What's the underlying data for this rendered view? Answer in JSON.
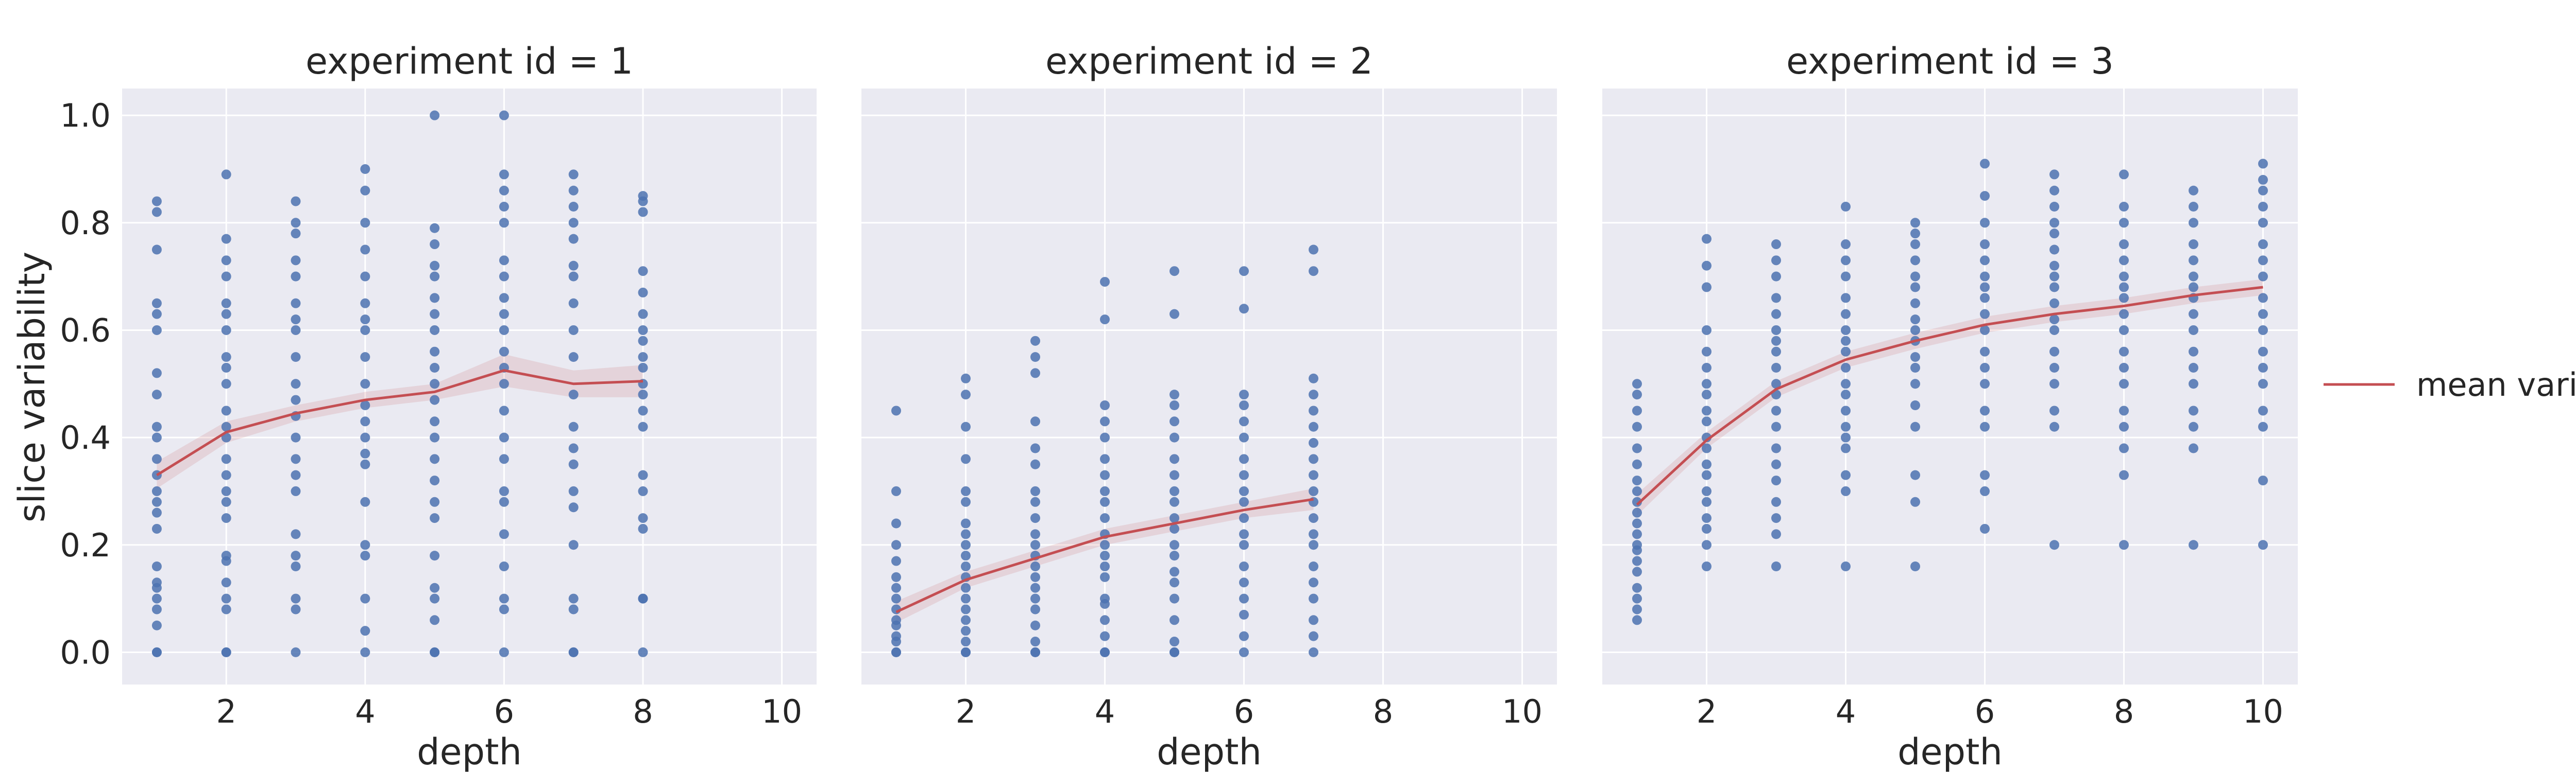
{
  "chart_data": {
    "type": "scatter",
    "ylabel": "slice variability",
    "xlabel": "depth",
    "xlim": [
      0.5,
      10.5
    ],
    "ylim": [
      -0.06,
      1.05
    ],
    "xticks": [
      2,
      4,
      6,
      8,
      10
    ],
    "yticks": [
      0.0,
      0.2,
      0.4,
      0.6,
      0.8,
      1.0
    ],
    "grid": true,
    "legend": {
      "position": "right",
      "label": "mean variability"
    },
    "colors": {
      "points": "#4C72B0",
      "mean": "#C44E52",
      "background": "#EAEAF2"
    },
    "panels": [
      {
        "title": "experiment id = 1",
        "points": [
          {
            "x": 1,
            "y": [
              0.0,
              0.0,
              0.05,
              0.08,
              0.1,
              0.12,
              0.13,
              0.16,
              0.23,
              0.26,
              0.28,
              0.3,
              0.33,
              0.36,
              0.4,
              0.42,
              0.48,
              0.52,
              0.6,
              0.63,
              0.65,
              0.75,
              0.82,
              0.84
            ]
          },
          {
            "x": 2,
            "y": [
              0.0,
              0.0,
              0.08,
              0.1,
              0.13,
              0.17,
              0.18,
              0.25,
              0.28,
              0.3,
              0.33,
              0.36,
              0.4,
              0.42,
              0.45,
              0.5,
              0.53,
              0.55,
              0.6,
              0.63,
              0.65,
              0.7,
              0.73,
              0.77,
              0.89
            ]
          },
          {
            "x": 3,
            "y": [
              0.0,
              0.08,
              0.1,
              0.16,
              0.18,
              0.22,
              0.3,
              0.33,
              0.36,
              0.4,
              0.44,
              0.47,
              0.5,
              0.55,
              0.6,
              0.62,
              0.65,
              0.7,
              0.73,
              0.78,
              0.8,
              0.84
            ]
          },
          {
            "x": 4,
            "y": [
              0.0,
              0.04,
              0.1,
              0.18,
              0.2,
              0.28,
              0.35,
              0.37,
              0.4,
              0.43,
              0.46,
              0.5,
              0.55,
              0.6,
              0.62,
              0.65,
              0.7,
              0.75,
              0.8,
              0.86,
              0.9
            ]
          },
          {
            "x": 5,
            "y": [
              0.0,
              0.0,
              0.06,
              0.1,
              0.12,
              0.18,
              0.25,
              0.28,
              0.32,
              0.36,
              0.4,
              0.43,
              0.47,
              0.5,
              0.53,
              0.56,
              0.6,
              0.63,
              0.66,
              0.7,
              0.72,
              0.76,
              0.79,
              1.0
            ]
          },
          {
            "x": 6,
            "y": [
              0.0,
              0.08,
              0.1,
              0.16,
              0.22,
              0.28,
              0.3,
              0.36,
              0.4,
              0.45,
              0.5,
              0.53,
              0.56,
              0.6,
              0.63,
              0.66,
              0.7,
              0.73,
              0.8,
              0.83,
              0.86,
              0.89,
              1.0
            ]
          },
          {
            "x": 7,
            "y": [
              0.0,
              0.0,
              0.08,
              0.1,
              0.2,
              0.27,
              0.3,
              0.35,
              0.38,
              0.42,
              0.48,
              0.55,
              0.6,
              0.65,
              0.7,
              0.72,
              0.77,
              0.8,
              0.83,
              0.86,
              0.89
            ]
          },
          {
            "x": 8,
            "y": [
              0.0,
              0.1,
              0.1,
              0.23,
              0.25,
              0.3,
              0.33,
              0.42,
              0.45,
              0.48,
              0.5,
              0.53,
              0.55,
              0.58,
              0.6,
              0.63,
              0.67,
              0.71,
              0.82,
              0.84,
              0.85
            ]
          }
        ],
        "mean": {
          "x": [
            1,
            2,
            3,
            4,
            5,
            6,
            7,
            8
          ],
          "y": [
            0.33,
            0.41,
            0.445,
            0.47,
            0.485,
            0.525,
            0.5,
            0.505
          ],
          "ci_low": [
            0.305,
            0.39,
            0.43,
            0.455,
            0.47,
            0.495,
            0.475,
            0.475
          ],
          "ci_high": [
            0.355,
            0.43,
            0.46,
            0.485,
            0.5,
            0.555,
            0.525,
            0.535
          ]
        }
      },
      {
        "title": "experiment id = 2",
        "points": [
          {
            "x": 1,
            "y": [
              0.0,
              0.0,
              0.02,
              0.03,
              0.05,
              0.06,
              0.08,
              0.1,
              0.12,
              0.14,
              0.17,
              0.2,
              0.24,
              0.3,
              0.45
            ]
          },
          {
            "x": 2,
            "y": [
              0.0,
              0.0,
              0.02,
              0.04,
              0.06,
              0.08,
              0.1,
              0.12,
              0.14,
              0.16,
              0.18,
              0.2,
              0.22,
              0.24,
              0.28,
              0.3,
              0.36,
              0.42,
              0.48,
              0.51
            ]
          },
          {
            "x": 3,
            "y": [
              0.0,
              0.0,
              0.02,
              0.05,
              0.08,
              0.1,
              0.12,
              0.14,
              0.16,
              0.18,
              0.2,
              0.22,
              0.25,
              0.28,
              0.3,
              0.35,
              0.38,
              0.43,
              0.52,
              0.55,
              0.58
            ]
          },
          {
            "x": 4,
            "y": [
              0.0,
              0.0,
              0.03,
              0.06,
              0.09,
              0.1,
              0.14,
              0.16,
              0.18,
              0.2,
              0.22,
              0.25,
              0.28,
              0.3,
              0.33,
              0.36,
              0.4,
              0.43,
              0.46,
              0.62,
              0.69
            ]
          },
          {
            "x": 5,
            "y": [
              0.0,
              0.0,
              0.02,
              0.06,
              0.1,
              0.13,
              0.15,
              0.18,
              0.2,
              0.23,
              0.25,
              0.28,
              0.3,
              0.33,
              0.36,
              0.4,
              0.43,
              0.46,
              0.48,
              0.63,
              0.71
            ]
          },
          {
            "x": 6,
            "y": [
              0.0,
              0.03,
              0.07,
              0.1,
              0.13,
              0.16,
              0.2,
              0.22,
              0.25,
              0.28,
              0.3,
              0.33,
              0.36,
              0.4,
              0.43,
              0.46,
              0.48,
              0.64,
              0.71
            ]
          },
          {
            "x": 7,
            "y": [
              0.0,
              0.03,
              0.06,
              0.1,
              0.13,
              0.16,
              0.2,
              0.22,
              0.25,
              0.28,
              0.3,
              0.33,
              0.36,
              0.39,
              0.42,
              0.45,
              0.48,
              0.51,
              0.71,
              0.75
            ]
          }
        ],
        "mean": {
          "x": [
            1,
            2,
            3,
            4,
            5,
            6,
            7
          ],
          "y": [
            0.075,
            0.135,
            0.175,
            0.215,
            0.24,
            0.265,
            0.285
          ],
          "ci_low": [
            0.055,
            0.12,
            0.16,
            0.2,
            0.225,
            0.25,
            0.265
          ],
          "ci_high": [
            0.095,
            0.15,
            0.19,
            0.23,
            0.255,
            0.28,
            0.305
          ]
        }
      },
      {
        "title": "experiment id = 3",
        "points": [
          {
            "x": 1,
            "y": [
              0.06,
              0.08,
              0.1,
              0.12,
              0.15,
              0.17,
              0.19,
              0.2,
              0.22,
              0.24,
              0.26,
              0.28,
              0.3,
              0.32,
              0.35,
              0.38,
              0.42,
              0.45,
              0.48,
              0.5
            ]
          },
          {
            "x": 2,
            "y": [
              0.16,
              0.2,
              0.23,
              0.25,
              0.28,
              0.3,
              0.33,
              0.35,
              0.38,
              0.4,
              0.43,
              0.45,
              0.48,
              0.5,
              0.53,
              0.56,
              0.6,
              0.68,
              0.72,
              0.77
            ]
          },
          {
            "x": 3,
            "y": [
              0.16,
              0.22,
              0.25,
              0.28,
              0.32,
              0.35,
              0.38,
              0.42,
              0.45,
              0.48,
              0.5,
              0.53,
              0.56,
              0.58,
              0.6,
              0.63,
              0.66,
              0.7,
              0.73,
              0.76
            ]
          },
          {
            "x": 4,
            "y": [
              0.16,
              0.3,
              0.33,
              0.38,
              0.4,
              0.42,
              0.45,
              0.48,
              0.5,
              0.53,
              0.56,
              0.58,
              0.6,
              0.63,
              0.66,
              0.7,
              0.73,
              0.76,
              0.83
            ]
          },
          {
            "x": 5,
            "y": [
              0.16,
              0.28,
              0.33,
              0.42,
              0.46,
              0.5,
              0.53,
              0.55,
              0.58,
              0.6,
              0.62,
              0.65,
              0.68,
              0.7,
              0.73,
              0.76,
              0.78,
              0.8
            ]
          },
          {
            "x": 6,
            "y": [
              0.23,
              0.3,
              0.33,
              0.42,
              0.45,
              0.5,
              0.53,
              0.56,
              0.6,
              0.63,
              0.66,
              0.68,
              0.7,
              0.73,
              0.76,
              0.8,
              0.85,
              0.91
            ]
          },
          {
            "x": 7,
            "y": [
              0.2,
              0.42,
              0.45,
              0.5,
              0.53,
              0.56,
              0.6,
              0.62,
              0.65,
              0.68,
              0.7,
              0.72,
              0.75,
              0.78,
              0.8,
              0.83,
              0.86,
              0.89
            ]
          },
          {
            "x": 8,
            "y": [
              0.2,
              0.33,
              0.38,
              0.42,
              0.45,
              0.5,
              0.53,
              0.56,
              0.6,
              0.63,
              0.66,
              0.68,
              0.7,
              0.73,
              0.76,
              0.8,
              0.83,
              0.89
            ]
          },
          {
            "x": 9,
            "y": [
              0.2,
              0.38,
              0.42,
              0.45,
              0.5,
              0.53,
              0.56,
              0.6,
              0.63,
              0.66,
              0.68,
              0.7,
              0.73,
              0.76,
              0.8,
              0.83,
              0.86
            ]
          },
          {
            "x": 10,
            "y": [
              0.2,
              0.32,
              0.42,
              0.45,
              0.5,
              0.53,
              0.56,
              0.6,
              0.63,
              0.66,
              0.7,
              0.73,
              0.76,
              0.8,
              0.83,
              0.86,
              0.88,
              0.91
            ]
          }
        ],
        "mean": {
          "x": [
            1,
            2,
            3,
            4,
            5,
            6,
            7,
            8,
            9,
            10
          ],
          "y": [
            0.275,
            0.395,
            0.49,
            0.545,
            0.58,
            0.61,
            0.63,
            0.645,
            0.665,
            0.68
          ],
          "ci_low": [
            0.255,
            0.38,
            0.475,
            0.53,
            0.565,
            0.595,
            0.615,
            0.63,
            0.65,
            0.665
          ],
          "ci_high": [
            0.295,
            0.41,
            0.505,
            0.56,
            0.595,
            0.625,
            0.645,
            0.66,
            0.68,
            0.695
          ]
        }
      }
    ]
  }
}
